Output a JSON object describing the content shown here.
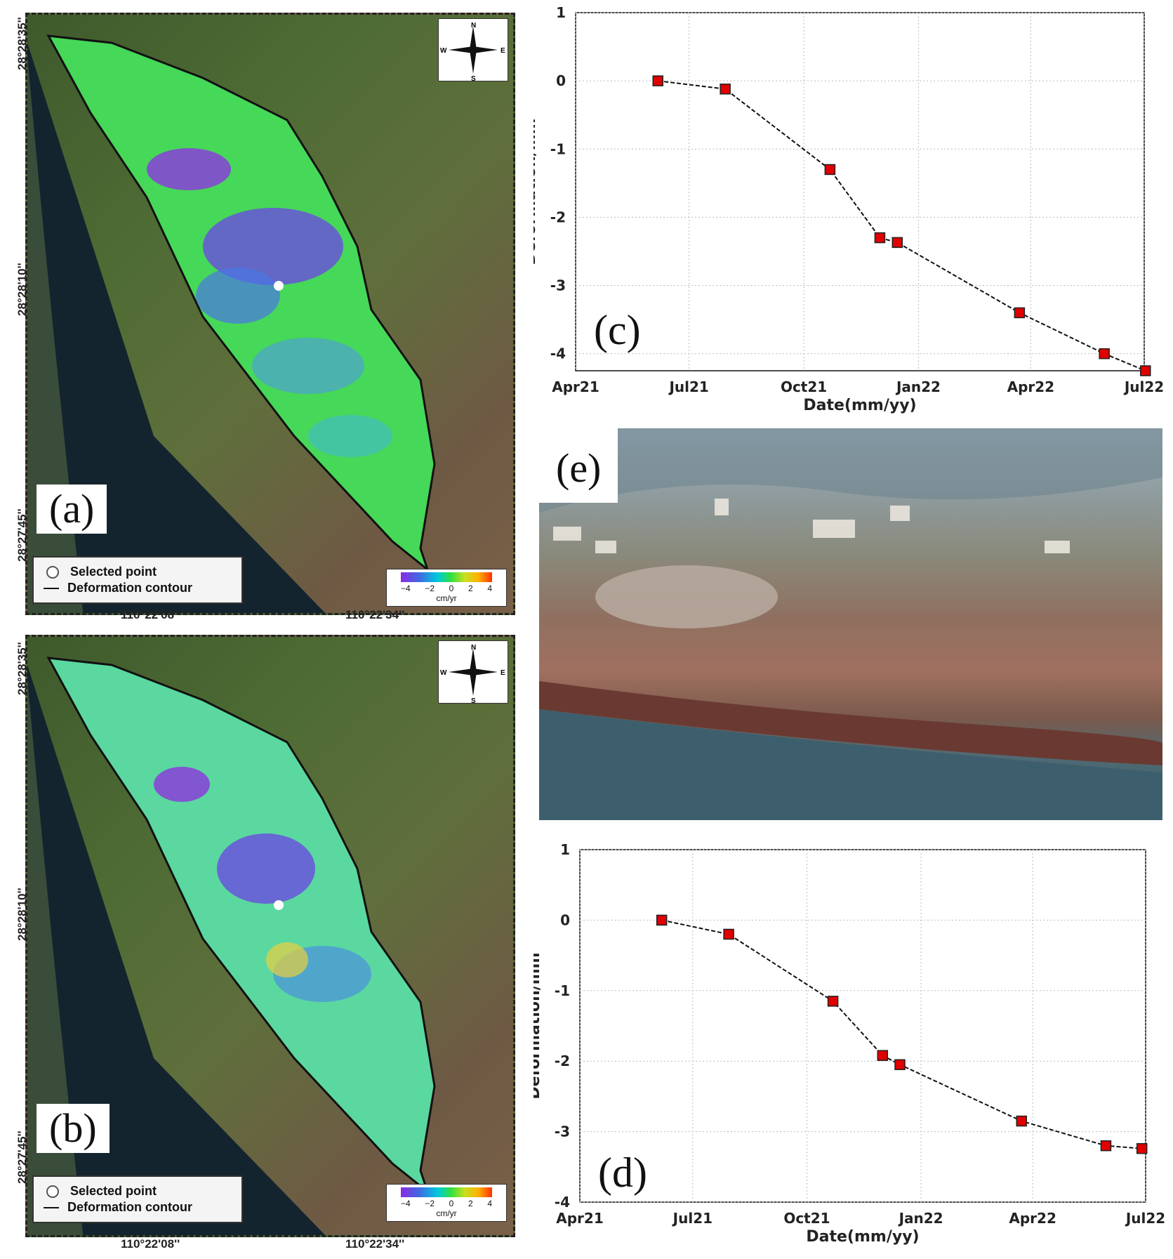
{
  "maps": [
    {
      "tag": "(a)",
      "lat_labels": [
        "28°28'35''",
        "28°28'10''",
        "28°27'45''"
      ],
      "lon_labels": [
        "110°22'08''",
        "110°22'34''"
      ],
      "legend": {
        "point": "Selected point",
        "contour": "Deformation contour"
      },
      "colorbar": {
        "ticks": [
          "−4",
          "−2",
          "0",
          "2",
          "4"
        ],
        "unit": "cm/yr"
      },
      "compass": {
        "n": "N",
        "s": "S",
        "e": "E",
        "w": "W"
      }
    },
    {
      "tag": "(b)",
      "lat_labels": [
        "28°28'35''",
        "28°28'10''",
        "28°27'45''"
      ],
      "lon_labels": [
        "110°22'08''",
        "110°22'34''"
      ],
      "legend": {
        "point": "Selected point",
        "contour": "Deformation contour"
      },
      "colorbar": {
        "ticks": [
          "−4",
          "−2",
          "0",
          "2",
          "4"
        ],
        "unit": "cm/yr"
      },
      "compass": {
        "n": "N",
        "s": "S",
        "e": "E",
        "w": "W"
      }
    }
  ],
  "photo": {
    "tag": "(e)"
  },
  "colors": {
    "marker": "#e00000",
    "line": "#111111",
    "grid": "#bbbbbb"
  },
  "chart_data": [
    {
      "type": "line",
      "panel": "(c)",
      "xlabel": "Date(mm/yy)",
      "ylabel": "Deformation/mm",
      "x_ticks": [
        "Apr21",
        "Jul21",
        "Oct21",
        "Jan22",
        "Apr22",
        "Jul22"
      ],
      "xlim": [
        "2021-04-01",
        "2022-07-01"
      ],
      "y_ticks": [
        1,
        0,
        -1,
        -2,
        -3,
        -4
      ],
      "ylim": [
        -4.25,
        1
      ],
      "grid": true,
      "x": [
        "2021-06-06",
        "2021-07-30",
        "2021-10-22",
        "2021-12-01",
        "2021-12-15",
        "2022-03-23",
        "2022-05-30",
        "2022-07-02"
      ],
      "values": [
        0,
        -0.12,
        -1.3,
        -2.3,
        -2.37,
        -3.4,
        -4.0,
        -4.25
      ]
    },
    {
      "type": "line",
      "panel": "(d)",
      "xlabel": "Date(mm/yy)",
      "ylabel": "Deformation/mm",
      "x_ticks": [
        "Apr21",
        "Jul21",
        "Oct21",
        "Jan22",
        "Apr22",
        "Jul22"
      ],
      "xlim": [
        "2021-04-01",
        "2022-07-01"
      ],
      "y_ticks": [
        1,
        0,
        -1,
        -2,
        -3,
        -4
      ],
      "ylim": [
        -4,
        1
      ],
      "grid": true,
      "x": [
        "2021-06-06",
        "2021-07-30",
        "2021-10-22",
        "2021-12-01",
        "2021-12-15",
        "2022-03-23",
        "2022-05-30",
        "2022-06-28"
      ],
      "values": [
        0,
        -0.2,
        -1.15,
        -1.92,
        -2.05,
        -2.85,
        -3.2,
        -3.24
      ]
    }
  ]
}
